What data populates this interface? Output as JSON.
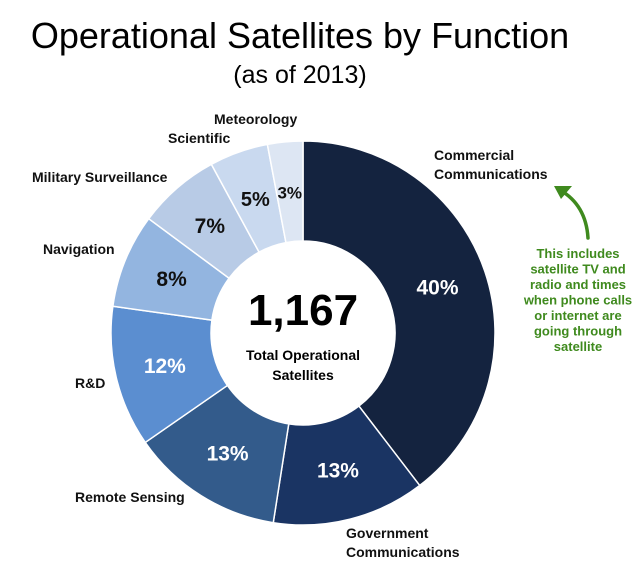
{
  "chart_data": {
    "type": "pie",
    "title": "Operational Satellites by Function",
    "subtitle": "(as of 2013)",
    "center": {
      "value": "1,167",
      "label_lines": [
        "Total Operational",
        "Satellites"
      ]
    },
    "slices": [
      {
        "name": "Commercial Communications",
        "label_lines": [
          "Commercial",
          "Communications"
        ],
        "value": 40,
        "display": "40%",
        "color": "#14233f"
      },
      {
        "name": "Government Communications",
        "label_lines": [
          "Government",
          "Communications"
        ],
        "value": 13,
        "display": "13%",
        "color": "#1a3463"
      },
      {
        "name": "Remote Sensing",
        "label_lines": [
          "Remote Sensing"
        ],
        "value": 13,
        "display": "13%",
        "color": "#335b8b"
      },
      {
        "name": "R&D",
        "label_lines": [
          "R&D"
        ],
        "value": 12,
        "display": "12%",
        "color": "#5b8ed0"
      },
      {
        "name": "Navigation",
        "label_lines": [
          "Navigation"
        ],
        "value": 8,
        "display": "8%",
        "color": "#93b5e0"
      },
      {
        "name": "Military Surveillance",
        "label_lines": [
          "Military Surveillance"
        ],
        "value": 7,
        "display": "7%",
        "color": "#b8cbe6"
      },
      {
        "name": "Scientific",
        "label_lines": [
          "Scientific"
        ],
        "value": 5,
        "display": "5%",
        "color": "#c9d9ef"
      },
      {
        "name": "Meteorology",
        "label_lines": [
          "Meteorology"
        ],
        "value": 3,
        "display": "3%",
        "color": "#dde6f3"
      }
    ],
    "annotation": {
      "lines": [
        "This includes",
        "satellite TV and",
        "radio and times",
        "when phone calls",
        "or internet are",
        "going through",
        "satellite"
      ],
      "color": "#3f8a1e",
      "icon": "curved-arrow-icon"
    }
  }
}
